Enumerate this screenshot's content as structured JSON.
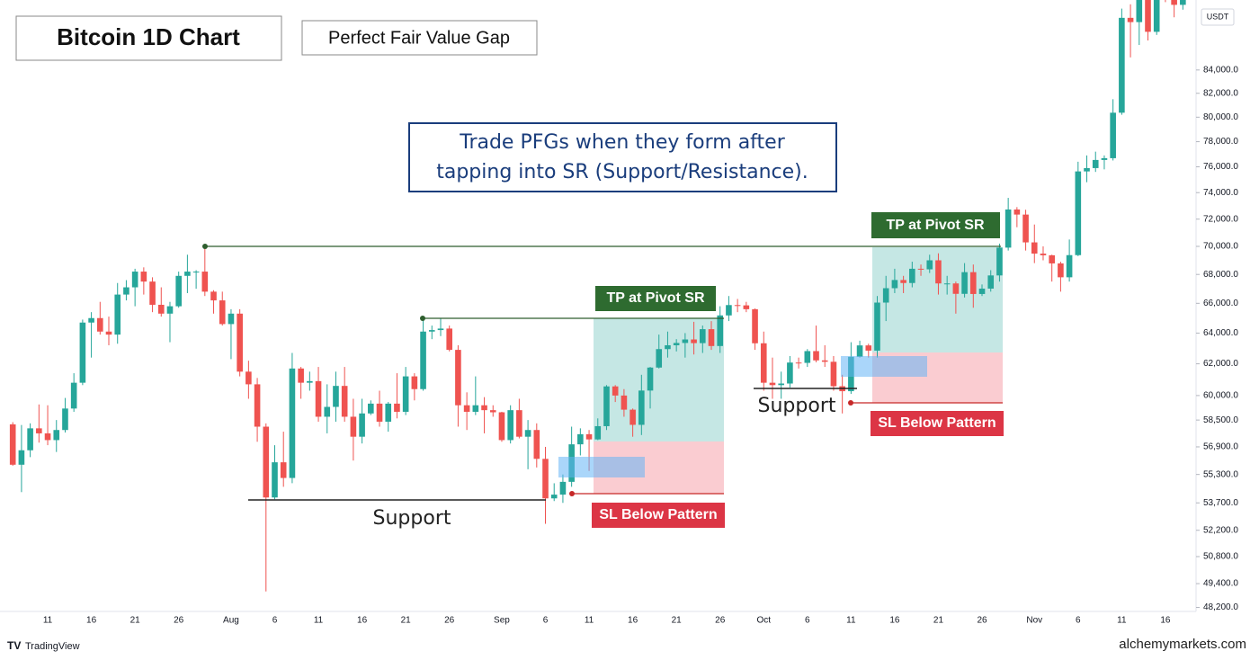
{
  "chart_data": {
    "type": "candlestick",
    "title": "Bitcoin 1D Chart",
    "subtitle": "Perfect Fair Value Gap",
    "annotations": {
      "callout": [
        "Trade PFGs when they form after",
        "tapping into SR (Support/Resistance)."
      ],
      "tp": [
        "TP at Pivot SR",
        "TP at Pivot SR"
      ],
      "sl": [
        "SL Below Pattern",
        "SL Below Pattern"
      ],
      "support": [
        "Support",
        "Support"
      ]
    },
    "currency": "USDT",
    "source": "TradingView",
    "watermark": "alchemymarkets.com",
    "log": true,
    "up_color": "#26a69a",
    "down_color": "#ef5350",
    "ylim": [
      48000,
      90300
    ],
    "yticks": [
      {
        "value": 84000,
        "label": "84,000.0"
      },
      {
        "value": 82000,
        "label": "82,000.0"
      },
      {
        "value": 80000,
        "label": "80,000.0"
      },
      {
        "value": 78000,
        "label": "78,000.0"
      },
      {
        "value": 76000,
        "label": "76,000.0"
      },
      {
        "value": 74000,
        "label": "74,000.0"
      },
      {
        "value": 72000,
        "label": "72,000.0"
      },
      {
        "value": 70000,
        "label": "70,000.0"
      },
      {
        "value": 68000,
        "label": "68,000.0"
      },
      {
        "value": 66000,
        "label": "66,000.0"
      },
      {
        "value": 64000,
        "label": "64,000.0"
      },
      {
        "value": 62000,
        "label": "62,000.0"
      },
      {
        "value": 60000,
        "label": "60,000.0"
      },
      {
        "value": 58500,
        "label": "58,500.0"
      },
      {
        "value": 56900,
        "label": "56,900.0"
      },
      {
        "value": 55300,
        "label": "55,300.0"
      },
      {
        "value": 53700,
        "label": "53,700.0"
      },
      {
        "value": 52200,
        "label": "52,200.0"
      },
      {
        "value": 50800,
        "label": "50,800.0"
      },
      {
        "value": 49400,
        "label": "49,400.0"
      },
      {
        "value": 48200,
        "label": "48,200.0"
      }
    ],
    "categories": [
      null,
      null,
      null,
      null,
      "11",
      null,
      null,
      null,
      null,
      "16",
      null,
      null,
      null,
      null,
      "21",
      null,
      null,
      null,
      null,
      "26",
      null,
      null,
      null,
      null,
      null,
      "Aug",
      null,
      null,
      null,
      null,
      "6",
      null,
      null,
      null,
      null,
      "11",
      null,
      null,
      null,
      null,
      "16",
      null,
      null,
      null,
      null,
      "21",
      null,
      null,
      null,
      null,
      "26",
      null,
      null,
      null,
      null,
      null,
      "Sep",
      null,
      null,
      null,
      null,
      "6",
      null,
      null,
      null,
      null,
      "11",
      null,
      null,
      null,
      null,
      "16",
      null,
      null,
      null,
      null,
      "21",
      null,
      null,
      null,
      null,
      "26",
      null,
      null,
      null,
      null,
      "Oct",
      null,
      null,
      null,
      null,
      "6",
      null,
      null,
      null,
      null,
      "11",
      null,
      null,
      null,
      null,
      "16",
      null,
      null,
      null,
      null,
      "21",
      null,
      null,
      null,
      null,
      "26",
      null,
      null,
      null,
      null,
      null,
      "Nov",
      null,
      null,
      null,
      null,
      "6",
      null,
      null,
      null,
      null,
      "11",
      null,
      null,
      null,
      null,
      "16",
      null,
      null
    ],
    "open": [
      58240,
      55860,
      56700,
      58000,
      57700,
      57300,
      57900,
      59200,
      60800,
      64700,
      65000,
      64100,
      63900,
      66600,
      67100,
      68200,
      67500,
      65900,
      65300,
      65800,
      67900,
      68200,
      68200,
      66800,
      66200,
      64600,
      65300,
      61500,
      60700,
      58100,
      54000,
      56000,
      55100,
      61700,
      60800,
      60900,
      58700,
      59300,
      60600,
      58700,
      57500,
      58900,
      59500,
      58400,
      59500,
      59000,
      61200,
      60400,
      64100,
      64200,
      64300,
      62900,
      59400,
      59000,
      59400,
      59100,
      58970,
      57300,
      59100,
      57500,
      57900,
      56200,
      53950,
      54160,
      54880,
      57050,
      57650,
      57340,
      58130,
      60570,
      60000,
      59130,
      58210,
      60310,
      61760,
      62950,
      63200,
      63350,
      63580,
      63340,
      64260,
      63150,
      65180,
      65880,
      65860,
      65600,
      63330,
      60800,
      60650,
      60750,
      62080,
      62060,
      62820,
      62220,
      62130,
      60580,
      60270,
      62450,
      63190,
      62850,
      66050,
      67040,
      67610,
      67400,
      68400,
      68360,
      69000,
      67370,
      67370,
      66650,
      68160,
      66640,
      67010,
      67930,
      69910,
      72720,
      72340,
      70290,
      69480,
      69360,
      68780,
      67800,
      69370,
      75640,
      75900,
      76540,
      76680,
      80370,
      88650,
      88260,
      90500,
      87380,
      91060,
      90570,
      89850
    ],
    "high": [
      58370,
      58200,
      58300,
      59450,
      59400,
      58500,
      59850,
      61400,
      64900,
      65400,
      66100,
      65100,
      67400,
      67600,
      68400,
      68500,
      67800,
      67100,
      66100,
      68200,
      69400,
      68300,
      70000,
      66900,
      66800,
      65600,
      65600,
      62200,
      61100,
      58300,
      57000,
      57800,
      62700,
      61800,
      61500,
      61800,
      60700,
      61500,
      61800,
      59800,
      59800,
      59700,
      60300,
      59600,
      61400,
      61800,
      61400,
      64900,
      64500,
      65000,
      64500,
      63200,
      60200,
      61200,
      59900,
      59400,
      59000,
      59400,
      59800,
      58500,
      58300,
      56900,
      54800,
      55300,
      58100,
      58000,
      57900,
      58600,
      60650,
      60650,
      60400,
      59200,
      61300,
      61800,
      63900,
      64100,
      63600,
      64000,
      64750,
      64500,
      64800,
      65800,
      66500,
      66300,
      66100,
      65650,
      64100,
      62400,
      61500,
      62500,
      62400,
      62950,
      64500,
      63200,
      62500,
      61300,
      63400,
      63500,
      63300,
      66500,
      67900,
      68400,
      67900,
      68900,
      68700,
      69400,
      69500,
      67900,
      67500,
      68800,
      68700,
      67300,
      68300,
      70200,
      73600,
      72900,
      72700,
      71600,
      70000,
      69400,
      68900,
      70500,
      76400,
      76900,
      77200,
      76900,
      81500,
      89500,
      89900,
      93200,
      91800,
      91800,
      91800,
      91400,
      92600
    ],
    "low": [
      55800,
      54300,
      56300,
      57150,
      57000,
      56600,
      57750,
      59000,
      60650,
      62400,
      63900,
      63200,
      63300,
      66200,
      65800,
      66600,
      65400,
      65100,
      63400,
      65700,
      66700,
      67000,
      66500,
      65300,
      64500,
      62300,
      61200,
      59800,
      57200,
      49000,
      53900,
      54600,
      54800,
      59800,
      60300,
      58400,
      57700,
      58400,
      58400,
      56100,
      57100,
      58800,
      58100,
      57800,
      58600,
      58800,
      59700,
      60300,
      63600,
      63800,
      62800,
      58100,
      57900,
      58800,
      57700,
      58700,
      57200,
      57100,
      57400,
      55600,
      55700,
      52550,
      53800,
      53700,
      54600,
      56400,
      55500,
      57300,
      57900,
      59600,
      58700,
      57500,
      57600,
      59200,
      61700,
      62400,
      62800,
      62400,
      62600,
      62700,
      62900,
      62700,
      64800,
      65400,
      65400,
      62900,
      60300,
      59800,
      59800,
      60500,
      61700,
      61800,
      62100,
      61800,
      60300,
      58900,
      60100,
      62400,
      62400,
      62400,
      64800,
      66700,
      66700,
      67100,
      67900,
      68100,
      66600,
      66600,
      65300,
      66400,
      65700,
      66500,
      66800,
      67500,
      69700,
      71400,
      69700,
      68800,
      69000,
      67500,
      66800,
      67500,
      69300,
      74800,
      75600,
      75800,
      76500,
      80200,
      85100,
      86200,
      86600,
      87100,
      90100,
      88700,
      89400
    ],
    "close": [
      55860,
      56700,
      58000,
      57700,
      57300,
      57900,
      59200,
      60800,
      64700,
      65000,
      64100,
      63900,
      66600,
      67100,
      68200,
      67500,
      65900,
      65300,
      65800,
      67900,
      68200,
      68200,
      66800,
      66200,
      64600,
      65300,
      61500,
      60700,
      58100,
      54000,
      56000,
      55100,
      61700,
      60800,
      60900,
      58700,
      59300,
      60600,
      58700,
      57500,
      58900,
      59500,
      58400,
      59500,
      59000,
      61200,
      60400,
      64100,
      64200,
      64300,
      62900,
      59400,
      59000,
      59400,
      59100,
      58970,
      57300,
      59100,
      57500,
      57900,
      56200,
      53950,
      54160,
      54880,
      57050,
      57650,
      57340,
      58130,
      60570,
      60000,
      59130,
      58210,
      60310,
      61760,
      62950,
      63200,
      63350,
      63580,
      63340,
      64260,
      63150,
      65180,
      65880,
      65860,
      65600,
      63330,
      60800,
      60650,
      60750,
      62080,
      62060,
      62820,
      62220,
      62130,
      60580,
      60270,
      62450,
      63190,
      62850,
      66050,
      67040,
      67610,
      67400,
      68400,
      68360,
      69000,
      67370,
      67370,
      66650,
      68160,
      66640,
      67010,
      67930,
      69910,
      72720,
      72340,
      70290,
      69480,
      69360,
      68780,
      67800,
      69370,
      75640,
      75900,
      76540,
      76680,
      80370,
      88650,
      88260,
      90500,
      87380,
      91060,
      90570,
      89850,
      90460
    ]
  }
}
